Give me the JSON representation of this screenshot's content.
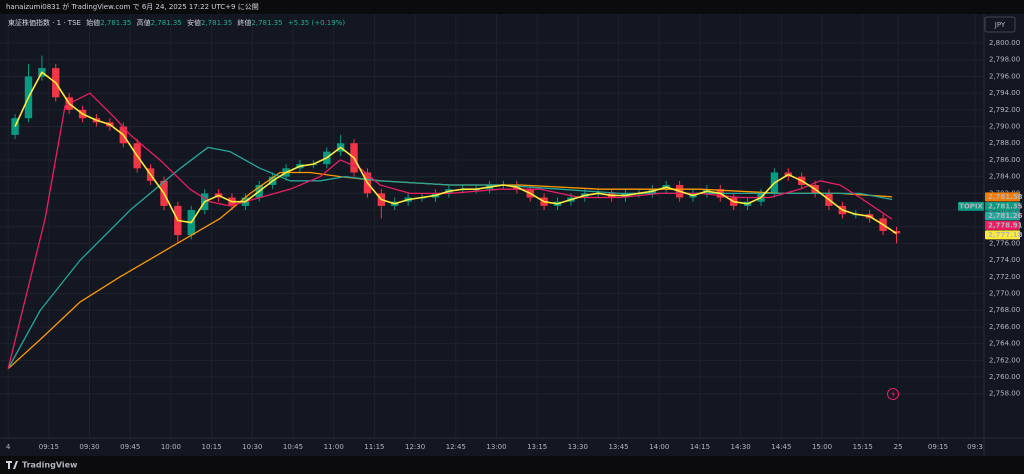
{
  "header": {
    "publish_note": "hanaizumi0831 が TradingView.com で 6月 24, 2025 17:22 UTC+9 に公開"
  },
  "chart_data": {
    "type": "candlestick",
    "symbol": "東証株価指数 · 1 · TSE",
    "ohlc_legend": [
      {
        "label": "始値",
        "value": "2,781.35"
      },
      {
        "label": "高値",
        "value": "2,781.35"
      },
      {
        "label": "安値",
        "value": "2,781.35"
      },
      {
        "label": "終値",
        "value": "2,781.35"
      }
    ],
    "change": "+5.35 (+0.19%)",
    "currency": "JPY",
    "x": [
      0.17,
      0.5,
      0.83,
      1.17,
      1.5,
      1.83,
      2.17,
      2.5,
      2.83,
      3.17,
      3.5,
      3.83,
      4.17,
      4.5,
      4.83,
      5.17,
      5.5,
      5.83,
      6.17,
      6.5,
      6.83,
      7.17,
      7.5,
      7.83,
      8.17,
      8.5,
      8.83,
      9.17,
      9.5,
      9.83,
      10.17,
      10.5,
      10.83,
      11.17,
      11.5,
      11.83,
      12.17,
      12.5,
      12.83,
      13.17,
      13.5,
      13.83,
      14.17,
      14.5,
      14.83,
      15.17,
      15.5,
      15.83,
      16.17,
      16.5,
      16.83,
      17.17,
      17.5,
      17.83,
      18.17,
      18.5,
      18.83,
      19.17,
      19.5,
      19.83,
      20.17,
      20.5,
      20.83,
      21.17,
      21.5,
      21.83
    ],
    "open": [
      2789,
      2791,
      2796,
      2797,
      2793.5,
      2792,
      2791,
      2790.5,
      2790,
      2788,
      2785,
      2783.5,
      2780.5,
      2777,
      2780,
      2782,
      2781.5,
      2780.5,
      2781.5,
      2783,
      2784,
      2785,
      2785.5,
      2785.5,
      2787,
      2788,
      2784.5,
      2782,
      2780.5,
      2781,
      2781.5,
      2781.5,
      2782,
      2782.5,
      2782.5,
      2782.5,
      2783,
      2783,
      2782.5,
      2781.5,
      2780.5,
      2781,
      2781.5,
      2782,
      2782,
      2781.5,
      2782,
      2782,
      2782.5,
      2783,
      2781.5,
      2782,
      2782.5,
      2781.5,
      2780.5,
      2781,
      2782,
      2784.5,
      2784,
      2783,
      2782,
      2780.5,
      2779.5,
      2779.5,
      2779,
      2777.5
    ],
    "high": [
      2791.5,
      2797.5,
      2798.5,
      2797.5,
      2794,
      2792.5,
      2791.5,
      2791,
      2790.5,
      2788.5,
      2785.5,
      2784,
      2781,
      2780.5,
      2782.5,
      2782.5,
      2782,
      2782,
      2783.5,
      2784.5,
      2785.5,
      2786,
      2786,
      2787.5,
      2789,
      2788.5,
      2785,
      2782.5,
      2781.5,
      2782,
      2782,
      2782.5,
      2783,
      2783,
      2783,
      2783.5,
      2783.5,
      2783.5,
      2783,
      2782,
      2781.5,
      2782,
      2782.5,
      2782.5,
      2782.5,
      2782.5,
      2782.5,
      2783,
      2783.5,
      2783.5,
      2782.5,
      2783,
      2783,
      2782,
      2781.5,
      2782.5,
      2785,
      2785,
      2784.5,
      2783.5,
      2782.5,
      2781,
      2780,
      2780,
      2779.5,
      2778
    ],
    "low": [
      2788.5,
      2790.5,
      2795.5,
      2793,
      2791.5,
      2790.5,
      2790,
      2789.5,
      2787.5,
      2784.5,
      2783,
      2780,
      2776,
      2776.5,
      2779.5,
      2781,
      2780,
      2780,
      2781,
      2782.5,
      2783.5,
      2784.5,
      2785,
      2785,
      2786.5,
      2784,
      2781.5,
      2779,
      2780,
      2780.5,
      2781,
      2781,
      2781.5,
      2782,
      2782,
      2782,
      2782.5,
      2782,
      2781,
      2780,
      2780,
      2780.5,
      2781,
      2781.5,
      2781,
      2781,
      2781.5,
      2781.5,
      2782,
      2781,
      2781,
      2781.5,
      2781,
      2780,
      2780,
      2780.5,
      2781.5,
      2783.5,
      2782.5,
      2781.5,
      2780,
      2779,
      2779,
      2778.5,
      2777,
      2776
    ],
    "close": [
      2791,
      2796,
      2797,
      2793.5,
      2792,
      2791,
      2790.5,
      2790,
      2788,
      2785,
      2783.5,
      2780.5,
      2777,
      2780,
      2782,
      2781.5,
      2780.5,
      2781.5,
      2783,
      2784,
      2785,
      2785.5,
      2785.5,
      2787,
      2788,
      2784.5,
      2782,
      2780.5,
      2781,
      2781.5,
      2781.5,
      2782,
      2782.5,
      2782.5,
      2782.5,
      2783,
      2783,
      2782.5,
      2781.5,
      2780.5,
      2781,
      2781.5,
      2782,
      2782,
      2781.5,
      2782,
      2782,
      2782.5,
      2783,
      2781.5,
      2782,
      2782.5,
      2781.5,
      2780.5,
      2781,
      2782,
      2784.5,
      2784,
      2783,
      2782,
      2780.5,
      2779.5,
      2779.5,
      2779,
      2777.5,
      2777.2
    ],
    "up_color": "#089981",
    "down_color": "#f23645",
    "series": [
      {
        "color": "#ffeb3b",
        "values": [
          2790,
          2793.5,
          2796.5,
          2795.25,
          2792.75,
          2791.5,
          2790.75,
          2790.25,
          2789,
          2786.5,
          2784.25,
          2782,
          2778.75,
          2778.5,
          2781,
          2781.75,
          2781,
          2781,
          2782.25,
          2783.5,
          2784.5,
          2785.25,
          2785.5,
          2786.25,
          2787.5,
          2786.25,
          2783.25,
          2781.25,
          2780.75,
          2781.25,
          2781.5,
          2781.75,
          2782.25,
          2782.5,
          2782.5,
          2782.75,
          2783,
          2782.75,
          2782,
          2781,
          2780.75,
          2781.25,
          2781.75,
          2782,
          2781.75,
          2781.75,
          2782,
          2782.25,
          2782.75,
          2782.25,
          2781.75,
          2782.25,
          2782,
          2781,
          2780.75,
          2781.5,
          2783.25,
          2784.25,
          2783.5,
          2782.5,
          2781.25,
          2780,
          2779.5,
          2779.25,
          2778.25,
          2777.18
        ]
      },
      {
        "color": "#e91e63",
        "x": [
          0,
          0.91,
          1.4,
          2.01,
          2.63,
          3,
          3.73,
          4.47,
          4.96,
          5.45,
          6.19,
          6.93,
          7.67,
          8.16,
          8.65,
          9.14,
          9.88,
          10.86,
          12.09,
          13.07,
          14.05,
          15.04,
          16.02,
          17,
          17.99,
          18.72,
          19.46,
          19.95,
          20.44,
          20.93,
          21.72
        ],
        "values": [
          2761,
          2779,
          2792.5,
          2794,
          2791,
          2789,
          2786,
          2782.5,
          2781,
          2780.5,
          2781.5,
          2782.5,
          2784,
          2786,
          2785,
          2783,
          2782,
          2782,
          2782.5,
          2782.5,
          2781.5,
          2781.5,
          2782,
          2782,
          2781.5,
          2781.5,
          2782.5,
          2783.5,
          2783,
          2781.5,
          2778.91
        ]
      },
      {
        "color": "#26a69a",
        "x": [
          0,
          0.79,
          1.77,
          3,
          4.23,
          4.91,
          5.45,
          6.19,
          6.93,
          7.67,
          8.28,
          9.14,
          10.86,
          12.09,
          13.56,
          15.04,
          17,
          18.97,
          19.95,
          20.93,
          21.72
        ],
        "values": [
          2761,
          2768,
          2774,
          2780,
          2785,
          2787.5,
          2787,
          2785,
          2783.5,
          2783.5,
          2784,
          2783.5,
          2783,
          2783,
          2782.5,
          2782,
          2782,
          2782,
          2782,
          2782,
          2781.26
        ]
      },
      {
        "color": "#ff9800",
        "x": [
          0,
          0.79,
          1.77,
          2.75,
          3.98,
          5.21,
          5.95,
          6.68,
          7.42,
          8.16,
          9.14,
          10.86,
          12.58,
          14.55,
          17,
          18.97,
          20.44,
          21.72
        ],
        "values": [
          2761,
          2764.5,
          2769,
          2772,
          2775.5,
          2779,
          2782,
          2784.5,
          2784.5,
          2784,
          2783.5,
          2783,
          2783,
          2782.5,
          2782.5,
          2782,
          2782,
          2781.58
        ]
      }
    ],
    "xlim": [
      -0.2,
      23.98
    ],
    "xticks": [
      {
        "value": 0,
        "label": "4"
      },
      {
        "value": 1,
        "label": "09:15"
      },
      {
        "value": 2,
        "label": "09:30"
      },
      {
        "value": 3,
        "label": "09:45"
      },
      {
        "value": 4,
        "label": "10:00"
      },
      {
        "value": 5,
        "label": "10:15"
      },
      {
        "value": 6,
        "label": "10:30"
      },
      {
        "value": 7,
        "label": "10:45"
      },
      {
        "value": 8,
        "label": "11:00"
      },
      {
        "value": 9,
        "label": "11:15"
      },
      {
        "value": 10,
        "label": "12:30"
      },
      {
        "value": 11,
        "label": "12:45"
      },
      {
        "value": 12,
        "label": "13:00"
      },
      {
        "value": 13,
        "label": "13:15"
      },
      {
        "value": 14,
        "label": "13:30"
      },
      {
        "value": 15,
        "label": "13:45"
      },
      {
        "value": 16,
        "label": "14:00"
      },
      {
        "value": 17,
        "label": "14:15"
      },
      {
        "value": 18,
        "label": "14:30"
      },
      {
        "value": 19,
        "label": "14:45"
      },
      {
        "value": 20,
        "label": "15:00"
      },
      {
        "value": 21,
        "label": "15:15"
      },
      {
        "value": 21.87,
        "label": "25"
      },
      {
        "value": 22.85,
        "label": "09:15"
      },
      {
        "value": 23.76,
        "label": "09:3"
      }
    ],
    "ylim": [
      2752.7,
      2803
    ],
    "yticks": [
      {
        "value": 2758,
        "label": "2,758.00"
      },
      {
        "value": 2760,
        "label": "2,760.00"
      },
      {
        "value": 2762,
        "label": "2,762.00"
      },
      {
        "value": 2764,
        "label": "2,764.00"
      },
      {
        "value": 2766,
        "label": "2,766.00"
      },
      {
        "value": 2768,
        "label": "2,768.00"
      },
      {
        "value": 2770,
        "label": "2,770.00"
      },
      {
        "value": 2772,
        "label": "2,772.00"
      },
      {
        "value": 2774,
        "label": "2,774.00"
      },
      {
        "value": 2776,
        "label": "2,776.00"
      },
      {
        "value": 2778,
        "label": "2,778.00"
      },
      {
        "value": 2780,
        "label": "2,780.00"
      },
      {
        "value": 2782,
        "label": "2,782.00"
      },
      {
        "value": 2784,
        "label": "2,784.00"
      },
      {
        "value": 2786,
        "label": "2,786.00"
      },
      {
        "value": 2788,
        "label": "2,788.00"
      },
      {
        "value": 2790,
        "label": "2,790.00"
      },
      {
        "value": 2792,
        "label": "2,792.00"
      },
      {
        "value": 2794,
        "label": "2,794.00"
      },
      {
        "value": 2796,
        "label": "2,796.00"
      },
      {
        "value": 2798,
        "label": "2,798.00"
      },
      {
        "value": 2800,
        "label": "2,800.00"
      }
    ],
    "grid": true,
    "price_tags": [
      {
        "value": 2781.58,
        "label": "2,781.58",
        "color": "#f57c00"
      },
      {
        "value": 2781.35,
        "label": "2,781.35",
        "color": "#089981",
        "name": "TOPIX"
      },
      {
        "value": 2781.26,
        "label": "2,781.26",
        "color": "#26a69a"
      },
      {
        "value": 2778.91,
        "label": "2,778.91",
        "color": "#e91e63"
      },
      {
        "value": 2777.18,
        "label": "2,777.18",
        "color": "#ffeb3b"
      }
    ]
  },
  "footer": {
    "brand": "TradingView"
  }
}
